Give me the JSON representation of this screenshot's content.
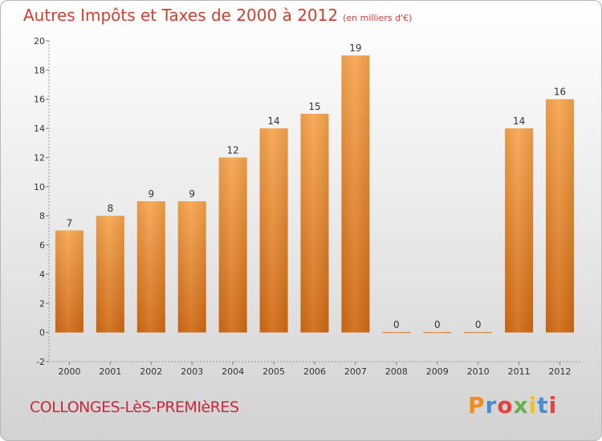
{
  "header": {
    "title": "Autres Impôts et Taxes de 2000 à 2012",
    "unit": "(en milliers d'€)"
  },
  "footer": {
    "commune": "COLLONGES-LèS-PREMIèRES",
    "logo_text": "Proxiti",
    "logo_colors": [
      "#f08c1e",
      "#4a90d0",
      "#e8403a",
      "#6ab04c",
      "#f0c020",
      "#4a90d0",
      "#e8403a"
    ]
  },
  "colors": {
    "bar_top": "#f7a54e",
    "bar_bottom": "#d06a14",
    "title": "#d2402c",
    "commune": "#c8283c"
  },
  "chart_data": {
    "type": "bar",
    "categories": [
      "2000",
      "2001",
      "2002",
      "2003",
      "2004",
      "2005",
      "2006",
      "2007",
      "2008",
      "2009",
      "2010",
      "2011",
      "2012"
    ],
    "values": [
      7,
      8,
      9,
      9,
      12,
      14,
      15,
      19,
      0,
      0,
      0,
      14,
      16
    ],
    "data_labels": [
      "7",
      "8",
      "9",
      "9",
      "12",
      "14",
      "15",
      "19",
      "0",
      "0",
      "0",
      "14",
      "16"
    ],
    "y_ticks": [
      "-2",
      "0",
      "2",
      "4",
      "6",
      "8",
      "10",
      "12",
      "14",
      "16",
      "18",
      "20"
    ],
    "ylim": [
      -2,
      20
    ],
    "grid": false
  }
}
